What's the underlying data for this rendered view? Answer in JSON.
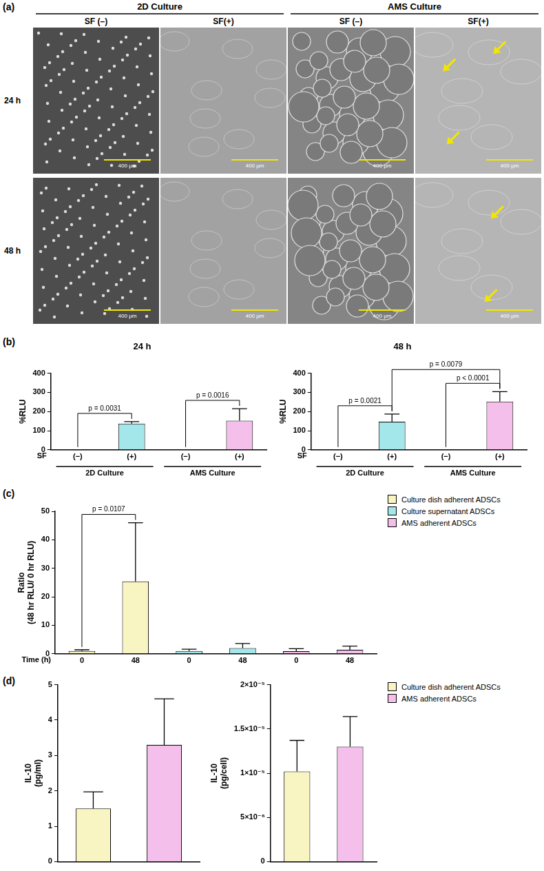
{
  "panel_labels": [
    "(a)",
    "(b)",
    "(c)",
    "(d)"
  ],
  "figure_a": {
    "groups": [
      {
        "title": "2D Culture",
        "columns": [
          "SF (–)",
          "SF(+)"
        ]
      },
      {
        "title": "AMS Culture",
        "columns": [
          "SF (–)",
          "SF(+)"
        ]
      }
    ],
    "rows": [
      "24 h",
      "48 h"
    ],
    "scale_bar": "400 µm"
  },
  "chart_data": [
    {
      "type": "bar",
      "title": "24 h",
      "y_label": "%RLU",
      "x_label": "SF",
      "categories": [
        "(−)",
        "(+)",
        "(−)",
        "(+)"
      ],
      "groups": [
        {
          "label": "2D Culture",
          "from": 0,
          "to": 1
        },
        {
          "label": "AMS Culture",
          "from": 2,
          "to": 3
        }
      ],
      "values": [
        0,
        137,
        0,
        152
      ],
      "errors": [
        0,
        10,
        0,
        63
      ],
      "colors": [
        "#a3e7eb",
        "#a3e7eb",
        "#f4bfea",
        "#f4bfea"
      ],
      "ylim": [
        0,
        400
      ],
      "yticks": [
        0,
        100,
        200,
        300,
        400
      ],
      "grid": false,
      "annotations": [
        {
          "from": 0,
          "to": 1,
          "label": "p = 0.0031"
        },
        {
          "from": 2,
          "to": 3,
          "label": "p = 0.0016"
        }
      ]
    },
    {
      "type": "bar",
      "title": "48 h",
      "y_label": "%RLU",
      "x_label": "SF",
      "categories": [
        "(−)",
        "(+)",
        "(−)",
        "(+)"
      ],
      "groups": [
        {
          "label": "2D Culture",
          "from": 0,
          "to": 1
        },
        {
          "label": "AMS Culture",
          "from": 2,
          "to": 3
        }
      ],
      "values": [
        0,
        147,
        0,
        252
      ],
      "errors": [
        0,
        40,
        0,
        52
      ],
      "colors": [
        "#a3e7eb",
        "#a3e7eb",
        "#f4bfea",
        "#f4bfea"
      ],
      "ylim": [
        0,
        400
      ],
      "yticks": [
        0,
        100,
        200,
        300,
        400
      ],
      "grid": false,
      "annotations": [
        {
          "from": 0,
          "to": 1,
          "label": "p = 0.0021"
        },
        {
          "from": 2,
          "to": 3,
          "label": "p < 0.0001"
        },
        {
          "from": 1,
          "to": 3,
          "label": "p = 0.0079"
        }
      ]
    },
    {
      "type": "bar",
      "y_label": [
        "Ratio",
        "(48 hr RLU/ 0 hr RLU)"
      ],
      "x_label": "Time (h)",
      "categories": [
        "0",
        "48",
        "0",
        "48",
        "0",
        "48"
      ],
      "series": [
        {
          "name": "Culture dish adherent ADSCs",
          "color": "#f8f5c3",
          "values": [
            1.0,
            25.4,
            null,
            null,
            null,
            null
          ],
          "errors": [
            0.4,
            20.6,
            null,
            null,
            null,
            null
          ]
        },
        {
          "name": "Culture supernatant ADSCs",
          "color": "#a3e7eb",
          "values": [
            null,
            null,
            1.0,
            2.0,
            null,
            null
          ],
          "errors": [
            null,
            null,
            0.6,
            1.6,
            null,
            null
          ]
        },
        {
          "name": "AMS adherent ADSCs",
          "color": "#f4bfea",
          "values": [
            null,
            null,
            null,
            null,
            0.9,
            1.4
          ],
          "errors": [
            null,
            null,
            null,
            null,
            0.9,
            1.3
          ]
        }
      ],
      "ylim": [
        0,
        50
      ],
      "yticks": [
        0,
        10,
        20,
        30,
        40,
        50
      ],
      "grid": false,
      "legend": "upper right",
      "annotations": [
        {
          "from": 0,
          "to": 1,
          "label": "p = 0.0107"
        }
      ]
    },
    {
      "type": "bar",
      "y_label": [
        "IL-10",
        "(pg/ml)"
      ],
      "categories": [
        null,
        null
      ],
      "values": [
        1.5,
        3.3
      ],
      "errors": [
        0.47,
        1.3
      ],
      "colors": [
        "#f8f5c3",
        "#f4bfea"
      ],
      "ylim": [
        0,
        5
      ],
      "yticks": [
        0,
        1,
        2,
        3,
        4,
        5
      ],
      "grid": false,
      "tick_labels": "y"
    },
    {
      "type": "bar",
      "y_label": [
        "IL-10",
        "(pg/cell)"
      ],
      "categories": [
        null,
        null
      ],
      "series": [
        {
          "name": "Culture dish adherent ADSCs",
          "color": "#f8f5c3",
          "values": [
            1.02e-05,
            null
          ],
          "errors": [
            3.5e-06,
            null
          ]
        },
        {
          "name": "AMS adherent ADSCs",
          "color": "#f4bfea",
          "values": [
            null,
            1.3e-05
          ],
          "errors": [
            null,
            3.4e-06
          ]
        }
      ],
      "ylim": [
        0,
        2e-05
      ],
      "yticks": [
        0,
        {
          "value": 5e-06,
          "label": "5×10⁻⁶"
        },
        {
          "value": 1e-05,
          "label": "1×10⁻⁵"
        },
        {
          "value": 1.5e-05,
          "label": "1.5×10⁻⁵"
        },
        {
          "value": 2e-05,
          "label": "2×10⁻⁵"
        }
      ],
      "grid": false,
      "tick_labels": "y",
      "legend": "upper right"
    }
  ]
}
